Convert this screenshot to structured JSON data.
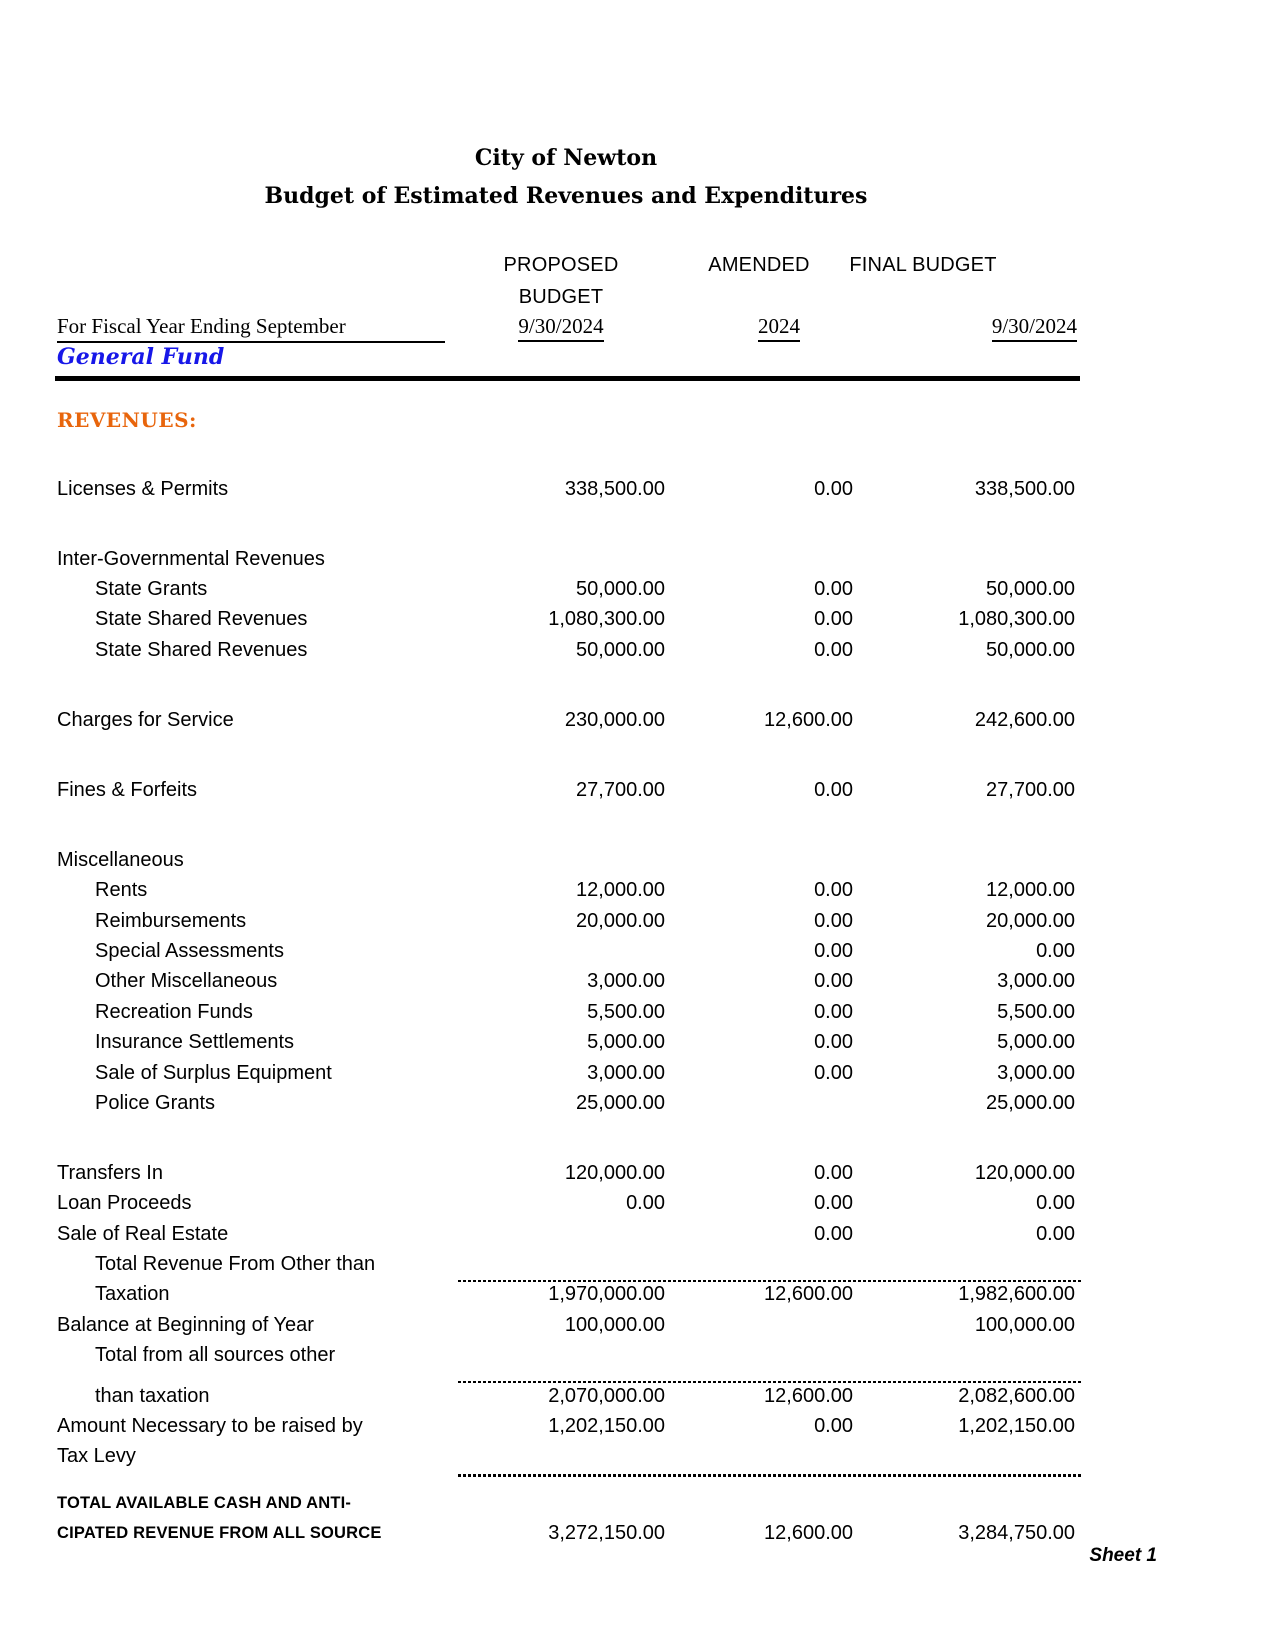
{
  "header": {
    "city": "City of Newton",
    "doc_title": "Budget of Estimated Revenues and Expenditures",
    "fiscal_year_label": "For Fiscal Year Ending September",
    "fund": "General Fund",
    "section": "REVENUES:"
  },
  "columns": {
    "proposed": {
      "label_line1": "PROPOSED",
      "label_line2": "BUDGET",
      "date": "9/30/2024"
    },
    "amended": {
      "label_line1": "AMENDED",
      "date": "2024"
    },
    "final": {
      "label_line1": "FINAL BUDGET",
      "date": "9/30/2024"
    }
  },
  "colors": {
    "fund_blue": "#1717E8",
    "revenues_orange": "#E8650C"
  },
  "table": {
    "rows": [
      {
        "label": "Licenses & Permits",
        "proposed": "338,500.00",
        "amended": "0.00",
        "final": "338,500.00"
      },
      {
        "type": "spacer"
      },
      {
        "label": "Inter-Governmental Revenues"
      },
      {
        "label": "State Grants",
        "indent": true,
        "proposed": "50,000.00",
        "amended": "0.00",
        "final": "50,000.00"
      },
      {
        "label": "State Shared Revenues",
        "indent": true,
        "proposed": "1,080,300.00",
        "amended": "0.00",
        "final": "1,080,300.00"
      },
      {
        "label": "State Shared Revenues",
        "indent": true,
        "proposed": "50,000.00",
        "amended": "0.00",
        "final": "50,000.00"
      },
      {
        "type": "spacer"
      },
      {
        "label": "Charges for Service",
        "proposed": "230,000.00",
        "amended": "12,600.00",
        "final": "242,600.00"
      },
      {
        "type": "spacer"
      },
      {
        "label": "Fines & Forfeits",
        "proposed": "27,700.00",
        "amended": "0.00",
        "final": "27,700.00"
      },
      {
        "type": "spacer"
      },
      {
        "label": "Miscellaneous"
      },
      {
        "label": "Rents",
        "indent": true,
        "proposed": "12,000.00",
        "amended": "0.00",
        "final": "12,000.00"
      },
      {
        "label": "Reimbursements",
        "indent": true,
        "proposed": "20,000.00",
        "amended": "0.00",
        "final": "20,000.00"
      },
      {
        "label": "Special Assessments",
        "indent": true,
        "amended": "0.00",
        "final": "0.00"
      },
      {
        "label": "Other Miscellaneous",
        "indent": true,
        "proposed": "3,000.00",
        "amended": "0.00",
        "final": "3,000.00"
      },
      {
        "label": "Recreation Funds",
        "indent": true,
        "proposed": "5,500.00",
        "amended": "0.00",
        "final": "5,500.00"
      },
      {
        "label": "Insurance Settlements",
        "indent": true,
        "proposed": "5,000.00",
        "amended": "0.00",
        "final": "5,000.00"
      },
      {
        "label": "Sale of Surplus Equipment",
        "indent": true,
        "proposed": "3,000.00",
        "amended": "0.00",
        "final": "3,000.00"
      },
      {
        "label": "Police Grants",
        "indent": true,
        "proposed": "25,000.00",
        "final": "25,000.00"
      },
      {
        "type": "spacer"
      },
      {
        "label": "Transfers In",
        "proposed": "120,000.00",
        "amended": "0.00",
        "final": "120,000.00"
      },
      {
        "label": "Loan Proceeds",
        "proposed": "0.00",
        "amended": "0.00",
        "final": "0.00"
      },
      {
        "label": "Sale of Real Estate",
        "amended": "0.00",
        "final": "0.00"
      },
      {
        "label": "Total Revenue From Other than",
        "indent": true
      },
      {
        "label": "Taxation",
        "indent": true,
        "dotline": true,
        "proposed": "1,970,000.00",
        "amended": "12,600.00",
        "final": "1,982,600.00"
      },
      {
        "label": "Balance at Beginning of Year",
        "proposed": "100,000.00",
        "final": "100,000.00"
      },
      {
        "label": "Total from all sources other",
        "indent": true
      },
      {
        "label": "than taxation",
        "indent": true,
        "dotline": true,
        "pregap": true,
        "proposed": "2,070,000.00",
        "amended": "12,600.00",
        "final": "2,082,600.00"
      },
      {
        "label": "Amount Necessary to be raised by",
        "proposed": "1,202,150.00",
        "amended": "0.00",
        "final": "1,202,150.00"
      },
      {
        "label": "Tax Levy"
      },
      {
        "type": "dots"
      },
      {
        "label": "TOTAL AVAILABLE CASH AND ANTI-",
        "total": true
      },
      {
        "label": "CIPATED REVENUE FROM ALL SOURCE",
        "total": true,
        "proposed": "3,272,150.00",
        "amended": "12,600.00",
        "final": "3,284,750.00"
      }
    ]
  },
  "footer": {
    "sheet_label": "Sheet 1"
  }
}
